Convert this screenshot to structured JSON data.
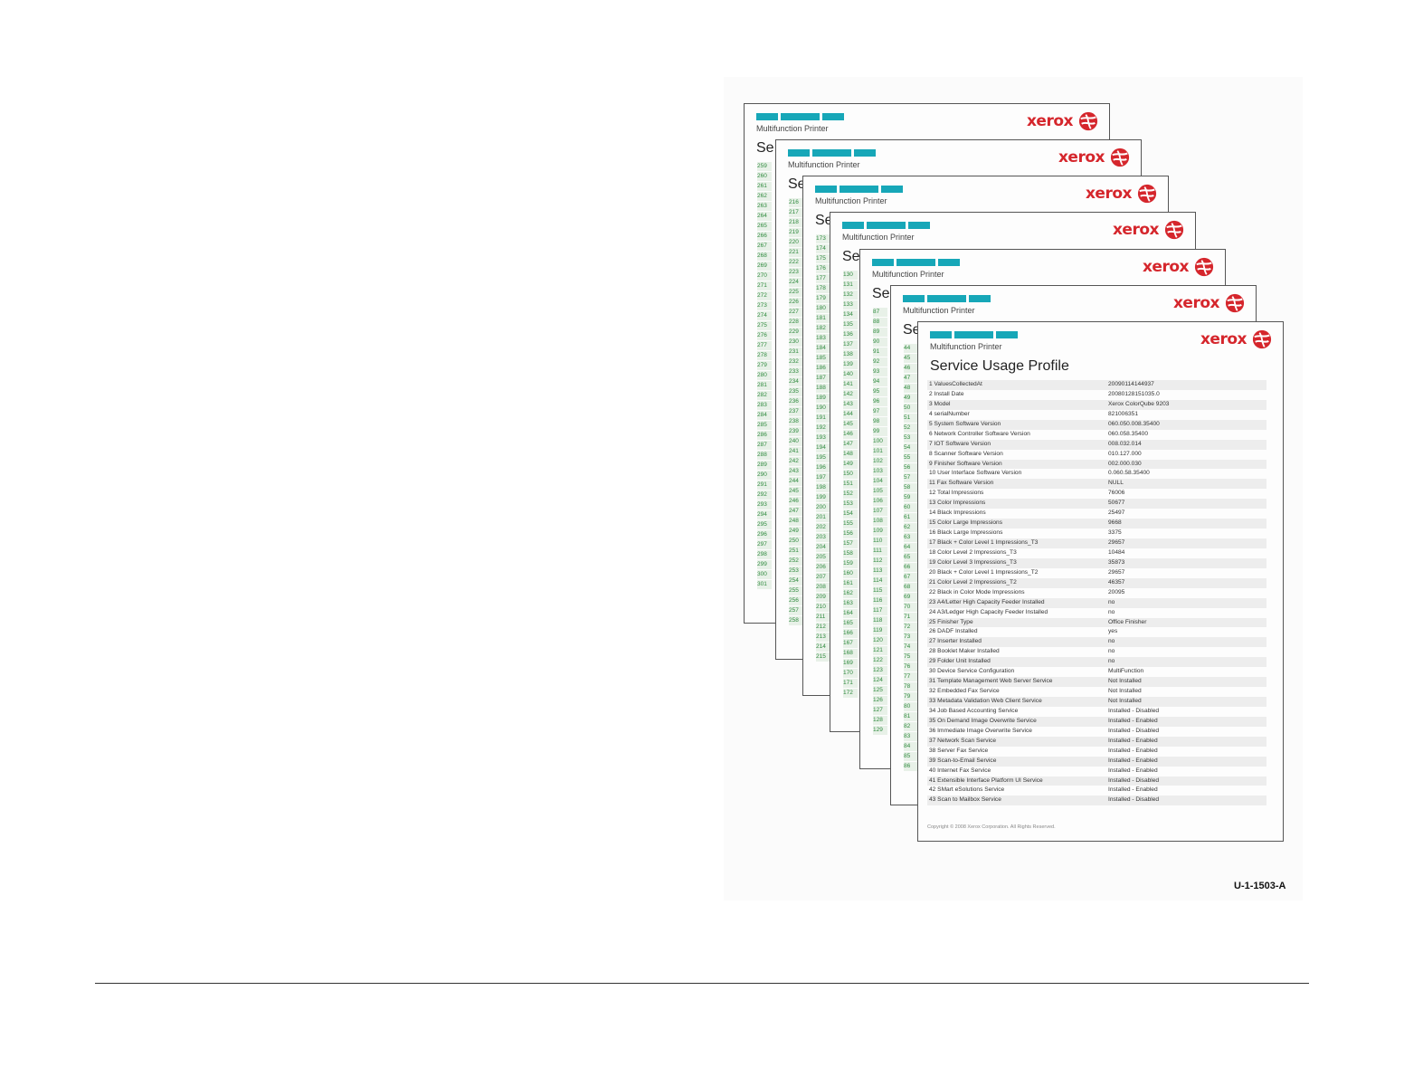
{
  "figure_id": "U-1-1503-A",
  "sheet": {
    "subtitle": "Multifunction Printer",
    "brand": "xerox",
    "title_fragment": "Se"
  },
  "front": {
    "subtitle": "Multifunction Printer",
    "brand": "xerox",
    "title": "Service Usage Profile",
    "rows": [
      {
        "label": "1 ValuesCollectedAt",
        "value": "20090114144937"
      },
      {
        "label": "2 Install Date",
        "value": "20080128151035.0"
      },
      {
        "label": "3 Model",
        "value": "Xerox ColorQube 9203"
      },
      {
        "label": "4 serialNumber",
        "value": "821006351"
      },
      {
        "label": "5 System Software Version",
        "value": "060.050.008.35400"
      },
      {
        "label": "6 Network Controller Software Version",
        "value": "060.058.35400"
      },
      {
        "label": "7 IOT Software Version",
        "value": "008.032.014"
      },
      {
        "label": "8 Scanner Software Version",
        "value": "010.127.000"
      },
      {
        "label": "9 Finisher Software Version",
        "value": "002.000.030"
      },
      {
        "label": "10 User Interface Software Version",
        "value": "0.060.58.35400"
      },
      {
        "label": "11 Fax Software Version",
        "value": "NULL"
      },
      {
        "label": "12 Total Impressions",
        "value": "76006"
      },
      {
        "label": "13 Color Impressions",
        "value": "50677"
      },
      {
        "label": "14 Black Impressions",
        "value": "25497"
      },
      {
        "label": "15 Color Large Impressions",
        "value": "9668"
      },
      {
        "label": "16 Black Large Impressions",
        "value": "3375"
      },
      {
        "label": "17 Black + Color Level 1 Impressions_T3",
        "value": "29657"
      },
      {
        "label": "18 Color Level 2 Impressions_T3",
        "value": "10484"
      },
      {
        "label": "19 Color Level 3 Impressions_T3",
        "value": "35873"
      },
      {
        "label": "20 Black + Color Level 1 Impressions_T2",
        "value": "29657"
      },
      {
        "label": "21 Color Level 2 Impressions_T2",
        "value": "46357"
      },
      {
        "label": "22 Black in Color Mode Impressions",
        "value": "20095"
      },
      {
        "label": "23 A4/Letter High Capacity Feeder Installed",
        "value": "no"
      },
      {
        "label": "24 A3/Ledger High Capacity Feeder Installed",
        "value": "no"
      },
      {
        "label": "25 Finisher Type",
        "value": "Office Finisher"
      },
      {
        "label": "26 DADF Installed",
        "value": "yes"
      },
      {
        "label": "27 Inserter Installed",
        "value": "no"
      },
      {
        "label": "28 Booklet Maker Installed",
        "value": "no"
      },
      {
        "label": "29 Folder Unit Installed",
        "value": "no"
      },
      {
        "label": "30 Device Service Configuration",
        "value": "MultiFunction"
      },
      {
        "label": "31 Template Management Web Server Service",
        "value": "Not Installed"
      },
      {
        "label": "32 Embedded Fax Service",
        "value": "Not Installed"
      },
      {
        "label": "33 Metadata Validation Web Client Service",
        "value": "Not Installed"
      },
      {
        "label": "34 Job Based Accounting Service",
        "value": "Installed - Disabled"
      },
      {
        "label": "35 On Demand Image Overwrite Service",
        "value": "Installed - Enabled"
      },
      {
        "label": "36 Immediate Image Overwrite Service",
        "value": "Installed - Disabled"
      },
      {
        "label": "37 Network Scan Service",
        "value": "Installed - Enabled"
      },
      {
        "label": "38 Server Fax Service",
        "value": "Installed - Enabled"
      },
      {
        "label": "39 Scan-to-Email Service",
        "value": "Installed - Enabled"
      },
      {
        "label": "40 Internet Fax Service",
        "value": "Installed - Enabled"
      },
      {
        "label": "41 Extensible Interface Platform UI Service",
        "value": "Installed - Disabled"
      },
      {
        "label": "42 SMart eSolutions Service",
        "value": "Installed - Enabled"
      },
      {
        "label": "43 Scan to Mailbox Service",
        "value": "Installed - Disabled"
      }
    ],
    "copyright": "Copyright © 2008 Xerox Corporation. All Rights Reserved."
  },
  "back_sheets": [
    {
      "numbers": [
        "259",
        "260",
        "261",
        "262",
        "263",
        "264",
        "265",
        "266",
        "267",
        "268",
        "269",
        "270",
        "271",
        "272",
        "273",
        "274",
        "275",
        "276",
        "277",
        "278",
        "279",
        "280",
        "281",
        "282",
        "283",
        "284",
        "285",
        "286",
        "287",
        "288",
        "289",
        "290",
        "291",
        "292",
        "293",
        "294",
        "295",
        "296",
        "297",
        "298",
        "299",
        "300",
        "301"
      ]
    },
    {
      "numbers": [
        "216",
        "217",
        "218",
        "219",
        "220",
        "221",
        "222",
        "223",
        "224",
        "225",
        "226",
        "227",
        "228",
        "229",
        "230",
        "231",
        "232",
        "233",
        "234",
        "235",
        "236",
        "237",
        "238",
        "239",
        "240",
        "241",
        "242",
        "243",
        "244",
        "245",
        "246",
        "247",
        "248",
        "249",
        "250",
        "251",
        "252",
        "253",
        "254",
        "255",
        "256",
        "257",
        "258"
      ]
    },
    {
      "numbers": [
        "173",
        "174",
        "175",
        "176",
        "177",
        "178",
        "179",
        "180",
        "181",
        "182",
        "183",
        "184",
        "185",
        "186",
        "187",
        "188",
        "189",
        "190",
        "191",
        "192",
        "193",
        "194",
        "195",
        "196",
        "197",
        "198",
        "199",
        "200",
        "201",
        "202",
        "203",
        "204",
        "205",
        "206",
        "207",
        "208",
        "209",
        "210",
        "211",
        "212",
        "213",
        "214",
        "215"
      ]
    },
    {
      "numbers": [
        "130",
        "131",
        "132",
        "133",
        "134",
        "135",
        "136",
        "137",
        "138",
        "139",
        "140",
        "141",
        "142",
        "143",
        "144",
        "145",
        "146",
        "147",
        "148",
        "149",
        "150",
        "151",
        "152",
        "153",
        "154",
        "155",
        "156",
        "157",
        "158",
        "159",
        "160",
        "161",
        "162",
        "163",
        "164",
        "165",
        "166",
        "167",
        "168",
        "169",
        "170",
        "171",
        "172"
      ]
    },
    {
      "numbers": [
        "87",
        "88",
        "89",
        "90",
        "91",
        "92",
        "93",
        "94",
        "95",
        "96",
        "97",
        "98",
        "99",
        "100",
        "101",
        "102",
        "103",
        "104",
        "105",
        "106",
        "107",
        "108",
        "109",
        "110",
        "111",
        "112",
        "113",
        "114",
        "115",
        "116",
        "117",
        "118",
        "119",
        "120",
        "121",
        "122",
        "123",
        "124",
        "125",
        "126",
        "127",
        "128",
        "129"
      ]
    },
    {
      "numbers": [
        "44",
        "45",
        "46",
        "47",
        "48",
        "49",
        "50",
        "51",
        "52",
        "53",
        "54",
        "55",
        "56",
        "57",
        "58",
        "59",
        "60",
        "61",
        "62",
        "63",
        "64",
        "65",
        "66",
        "67",
        "68",
        "69",
        "70",
        "71",
        "72",
        "73",
        "74",
        "75",
        "76",
        "77",
        "78",
        "79",
        "80",
        "81",
        "82",
        "83",
        "84",
        "85",
        "86"
      ]
    }
  ],
  "colors": {
    "brand_red": "#d5262c",
    "header_teal": "#17a7b8",
    "row_number_green": "#2f8a3e"
  }
}
